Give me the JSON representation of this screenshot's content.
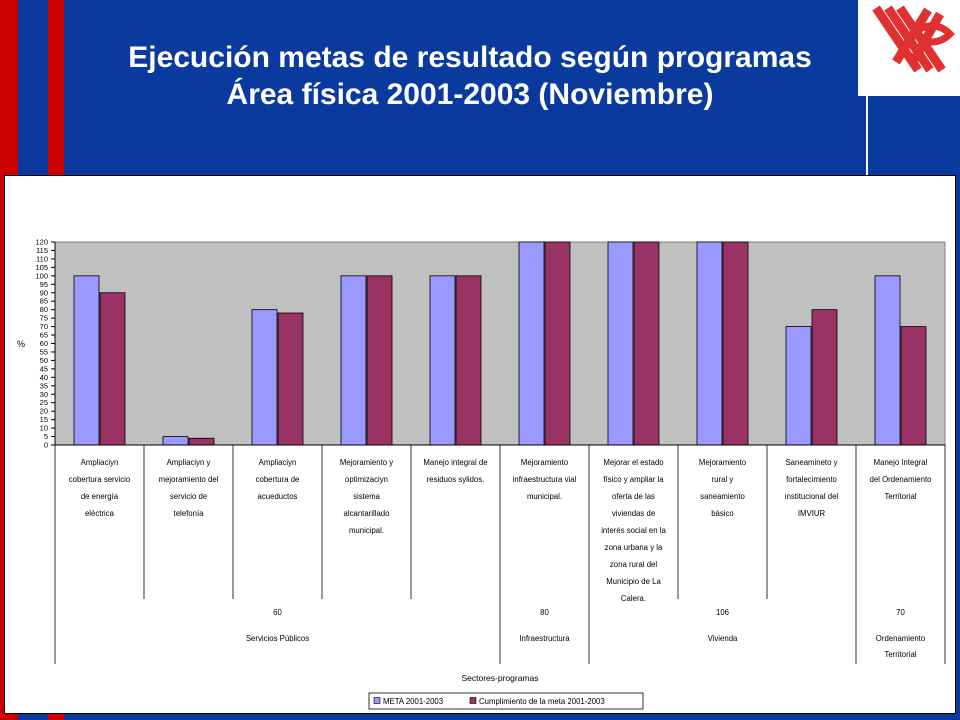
{
  "slide": {
    "title_line1": "Ejecución metas de resultado según programas",
    "title_line2": "Área física 2001-2003 (Noviembre)"
  },
  "chart_data": {
    "type": "bar",
    "ylabel": "%",
    "xlabel": "Sectores-programas",
    "ylim": [
      0,
      120
    ],
    "yticks": [
      0,
      5,
      10,
      15,
      20,
      25,
      30,
      35,
      40,
      45,
      50,
      55,
      60,
      65,
      70,
      75,
      80,
      85,
      90,
      95,
      100,
      105,
      110,
      115,
      120
    ],
    "categories": [
      [
        "Ampliaciyn",
        "cobertura servicio",
        "de energía",
        "eléctrica"
      ],
      [
        "Ampliaciyn y",
        "mejoramiento del",
        "servicio de",
        "telefonía"
      ],
      [
        "Ampliaciyn",
        "cobertura de",
        "acueductos"
      ],
      [
        "Mejoramiento y",
        "optimizaciyn",
        "sistema",
        "alcantarillado",
        "municipal."
      ],
      [
        "Manejo integral de",
        "residuos sylidos."
      ],
      [
        "Mejoramiento",
        "infraestructura vial",
        "municipal."
      ],
      [
        "Mejorar el estado",
        "físico y ampliar la",
        "oferta de las",
        "viviendas de",
        "interés social en la",
        "zona urbana y la",
        "zona rural del",
        "Municipio de La",
        "Calera."
      ],
      [
        "Mejoramiento",
        "rural y",
        "saneamiento",
        "básico"
      ],
      [
        "Saneamineto y",
        "fortalecimiento",
        "institucional del",
        "IMVIUR"
      ],
      [
        "Manejo Integral",
        "del Ordenamiento",
        "Territorial"
      ]
    ],
    "groups": [
      {
        "code": "60",
        "name": "Servicios Públicos",
        "span": [
          0,
          4
        ]
      },
      {
        "code": "80",
        "name": "Infraestructura",
        "span": [
          5,
          5
        ]
      },
      {
        "code": "106",
        "name": "Vivienda",
        "span": [
          6,
          8
        ]
      },
      {
        "code": "70",
        "name": "Ordenamiento|Territorial",
        "span": [
          9,
          9
        ]
      }
    ],
    "series": [
      {
        "name": "META 2001-2003",
        "color": "#9999ff",
        "values": [
          100,
          5,
          80,
          100,
          100,
          120,
          120,
          120,
          70,
          100
        ]
      },
      {
        "name": "Cumplimiento de la meta 2001-2003",
        "color": "#993366",
        "values": [
          90,
          4,
          78,
          100,
          100,
          120,
          120,
          120,
          80,
          70
        ]
      }
    ],
    "plot_bg": "#c0c0c0",
    "legend_position": "bottom"
  }
}
